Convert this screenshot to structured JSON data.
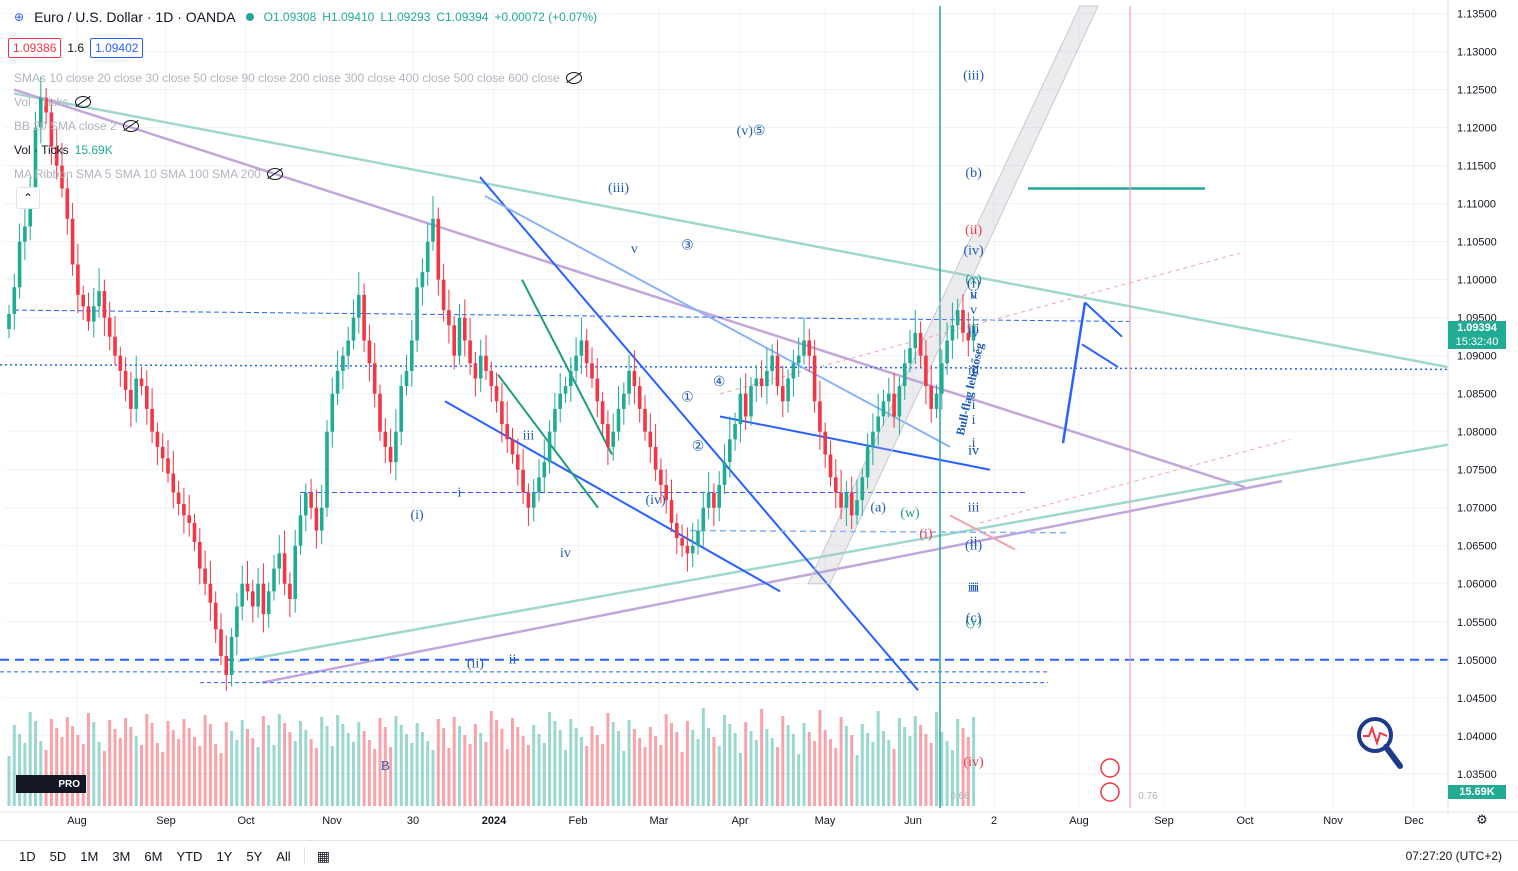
{
  "header": {
    "symbol": "Euro / U.S. Dollar · 1D · OANDA",
    "open": "O1.09308",
    "high": "H1.09410",
    "low": "L1.09293",
    "close": "C1.09394",
    "change": "+0.00072 (+0.07%)"
  },
  "trade": {
    "sell": "1.09386",
    "spread": "1.6",
    "buy": "1.09402"
  },
  "indicators": {
    "sma": "SMAs 10 close 20 close 30 close 50 close 90 close 200 close 300 close 400 close 500 close 600 close",
    "vol_ticks_hidden": "Vol · Ticks",
    "bb": "BB 20 SMA close 2",
    "vol_ticks": "Vol · Ticks",
    "vol_value": "15.69K",
    "ma_ribbon": "MA Ribbon SMA 5 SMA 10 SMA 100 SMA 200"
  },
  "price_tags": {
    "last": "1.09394",
    "countdown": "15:32:40",
    "volume": "15.69K"
  },
  "bottom_bar": {
    "ranges": [
      "1D",
      "5D",
      "1M",
      "3M",
      "6M",
      "YTD",
      "1Y",
      "5Y",
      "All"
    ],
    "clock": "07:27:20 (UTC+2)"
  },
  "colors": {
    "up": "#22ab94",
    "down": "#f23645",
    "accent": "#2962ff"
  },
  "icons": [
    "eye-off-icon",
    "calendar-range-icon",
    "settings-icon",
    "magnifier-icon",
    "flag-icon"
  ],
  "chart_data": {
    "type": "candlestick",
    "symbol": "EURUSD",
    "interval": "1D",
    "y_axis": {
      "range": [
        1.0305,
        1.136
      ],
      "ticks": [
        "1.13500",
        "1.13000",
        "1.12500",
        "1.12000",
        "1.11500",
        "1.11000",
        "1.10500",
        "1.10000",
        "1.09500",
        "1.09000",
        "1.08500",
        "1.08000",
        "1.07500",
        "1.07000",
        "1.06500",
        "1.06000",
        "1.05500",
        "1.05000",
        "1.04500",
        "1.04000",
        "1.03500"
      ]
    },
    "x_axis": {
      "labels": [
        "Aug",
        "Sep",
        "Oct",
        "Nov",
        "30",
        "2024",
        "Feb",
        "Mar",
        "Apr",
        "May",
        "Jun",
        "2",
        "Aug",
        "Sep",
        "Oct",
        "Nov",
        "Dec"
      ]
    },
    "closes": [
      1.0955,
      1.099,
      1.105,
      1.107,
      1.112,
      1.12,
      1.124,
      1.122,
      1.1175,
      1.115,
      1.112,
      1.108,
      1.102,
      1.098,
      1.0965,
      1.0945,
      1.0965,
      1.0985,
      1.095,
      1.0925,
      1.09,
      1.088,
      1.0855,
      1.083,
      1.087,
      1.086,
      1.083,
      1.08,
      1.078,
      1.0765,
      1.0745,
      1.072,
      1.0705,
      1.069,
      1.068,
      1.0655,
      1.062,
      1.06,
      1.0575,
      1.054,
      1.0505,
      1.048,
      1.053,
      1.057,
      1.06,
      1.059,
      1.057,
      1.06,
      1.056,
      1.059,
      1.062,
      1.064,
      1.06,
      1.058,
      1.065,
      1.069,
      1.072,
      1.07,
      1.067,
      1.07,
      1.08,
      1.085,
      1.088,
      1.09,
      1.092,
      1.095,
      1.098,
      1.092,
      1.089,
      1.085,
      1.08,
      1.078,
      1.076,
      1.08,
      1.086,
      1.088,
      1.092,
      1.099,
      1.101,
      1.105,
      1.108,
      1.1,
      1.096,
      1.094,
      1.09,
      1.095,
      1.092,
      1.089,
      1.087,
      1.09,
      1.088,
      1.086,
      1.084,
      1.081,
      1.079,
      1.077,
      1.075,
      1.072,
      1.07,
      1.072,
      1.074,
      1.076,
      1.08,
      1.083,
      1.085,
      1.086,
      1.088,
      1.09,
      1.092,
      1.089,
      1.087,
      1.084,
      1.081,
      1.078,
      1.08,
      1.083,
      1.085,
      1.088,
      1.086,
      1.083,
      1.08,
      1.078,
      1.075,
      1.073,
      1.071,
      1.068,
      1.066,
      1.065,
      1.064,
      1.065,
      1.067,
      1.07,
      1.072,
      1.07,
      1.073,
      1.076,
      1.079,
      1.081,
      1.085,
      1.082,
      1.086,
      1.087,
      1.086,
      1.088,
      1.09,
      1.086,
      1.084,
      1.087,
      1.089,
      1.09,
      1.092,
      1.09,
      1.084,
      1.08,
      1.077,
      1.074,
      1.072,
      1.07,
      1.072,
      1.069,
      1.071,
      1.074,
      1.078,
      1.08,
      1.082,
      1.084,
      1.085,
      1.082,
      1.086,
      1.089,
      1.091,
      1.093,
      1.09,
      1.086,
      1.083,
      1.085,
      1.089,
      1.092,
      1.094,
      1.096,
      1.093,
      1.092,
      1.094
    ],
    "trendlines_descending_label": "",
    "annotations": [
      {
        "text": "(v)⑤",
        "x": 140,
        "y": 1.119
      },
      {
        "text": "(iii)",
        "x": 115,
        "y": 1.1115
      },
      {
        "text": "(b)",
        "x": 205,
        "y": 1.1135
      },
      {
        "text": "(ii)",
        "x": 200,
        "y": 1.106
      },
      {
        "text": "(x)",
        "x": 198,
        "y": 1.0995
      },
      {
        "text": "(iii)",
        "x": 310,
        "y": 1.1263
      },
      {
        "text": "(iv)",
        "x": 372,
        "y": 1.1033
      },
      {
        "text": "(i)",
        "x": 253,
        "y": 1.099
      },
      {
        "text": "v",
        "x": 118,
        "y": 1.1035
      },
      {
        "text": "③",
        "x": 128,
        "y": 1.104
      },
      {
        "text": "④",
        "x": 134,
        "y": 1.086
      },
      {
        "text": "②",
        "x": 130,
        "y": 1.0775
      },
      {
        "text": "①",
        "x": 128,
        "y": 1.084
      },
      {
        "text": "iii",
        "x": 98,
        "y": 1.079
      },
      {
        "text": "i",
        "x": 85,
        "y": 1.0715
      },
      {
        "text": "(i)",
        "x": 77,
        "y": 1.0685
      },
      {
        "text": "iv",
        "x": 105,
        "y": 1.0635
      },
      {
        "text": "(iv)",
        "x": 122,
        "y": 1.0705
      },
      {
        "text": "(a)",
        "x": 164,
        "y": 1.0695
      },
      {
        "text": "(w)",
        "x": 170,
        "y": 1.0688
      },
      {
        "text": "(i)",
        "x": 173,
        "y": 1.066
      },
      {
        "text": "ii",
        "x": 207,
        "y": 1.0975
      },
      {
        "text": "iv",
        "x": 222,
        "y": 1.0925
      },
      {
        "text": "i",
        "x": 205,
        "y": 1.083
      },
      {
        "text": "iii",
        "x": 217,
        "y": 1.0695
      },
      {
        "text": "i",
        "x": 233,
        "y": 1.078
      },
      {
        "text": "iii",
        "x": 249,
        "y": 1.093
      },
      {
        "text": "v",
        "x": 265,
        "y": 1.0955
      },
      {
        "text": "iv",
        "x": 260,
        "y": 1.077
      },
      {
        "text": "ii",
        "x": 242,
        "y": 1.059
      },
      {
        "text": "(y)",
        "x": 222,
        "y": 1.0545
      },
      {
        "text": "(c)",
        "x": 228,
        "y": 1.055
      },
      {
        "text": "iii",
        "x": 227,
        "y": 1.059
      },
      {
        "text": "i",
        "x": 283,
        "y": 1.081
      },
      {
        "text": "iii",
        "x": 288,
        "y": 1.0875
      },
      {
        "text": "iv",
        "x": 293,
        "y": 1.077
      },
      {
        "text": "v",
        "x": 298,
        "y": 1.0975
      },
      {
        "text": "(ii)",
        "x": 282,
        "y": 1.0645
      },
      {
        "text": "ii",
        "x": 287,
        "y": 1.065
      },
      {
        "text": "(ii)",
        "x": 88,
        "y": 1.049
      },
      {
        "text": "ii",
        "x": 95,
        "y": 1.0495
      },
      {
        "text": "(iv)",
        "x": 258,
        "y": 1.036
      },
      {
        "text": "B",
        "x": 71,
        "y": 1.0355
      },
      {
        "text": "Bull-flag lehetőség",
        "x": 311,
        "y": 1.0855
      }
    ],
    "fib_labels": [
      "0.66",
      "0.76"
    ]
  }
}
